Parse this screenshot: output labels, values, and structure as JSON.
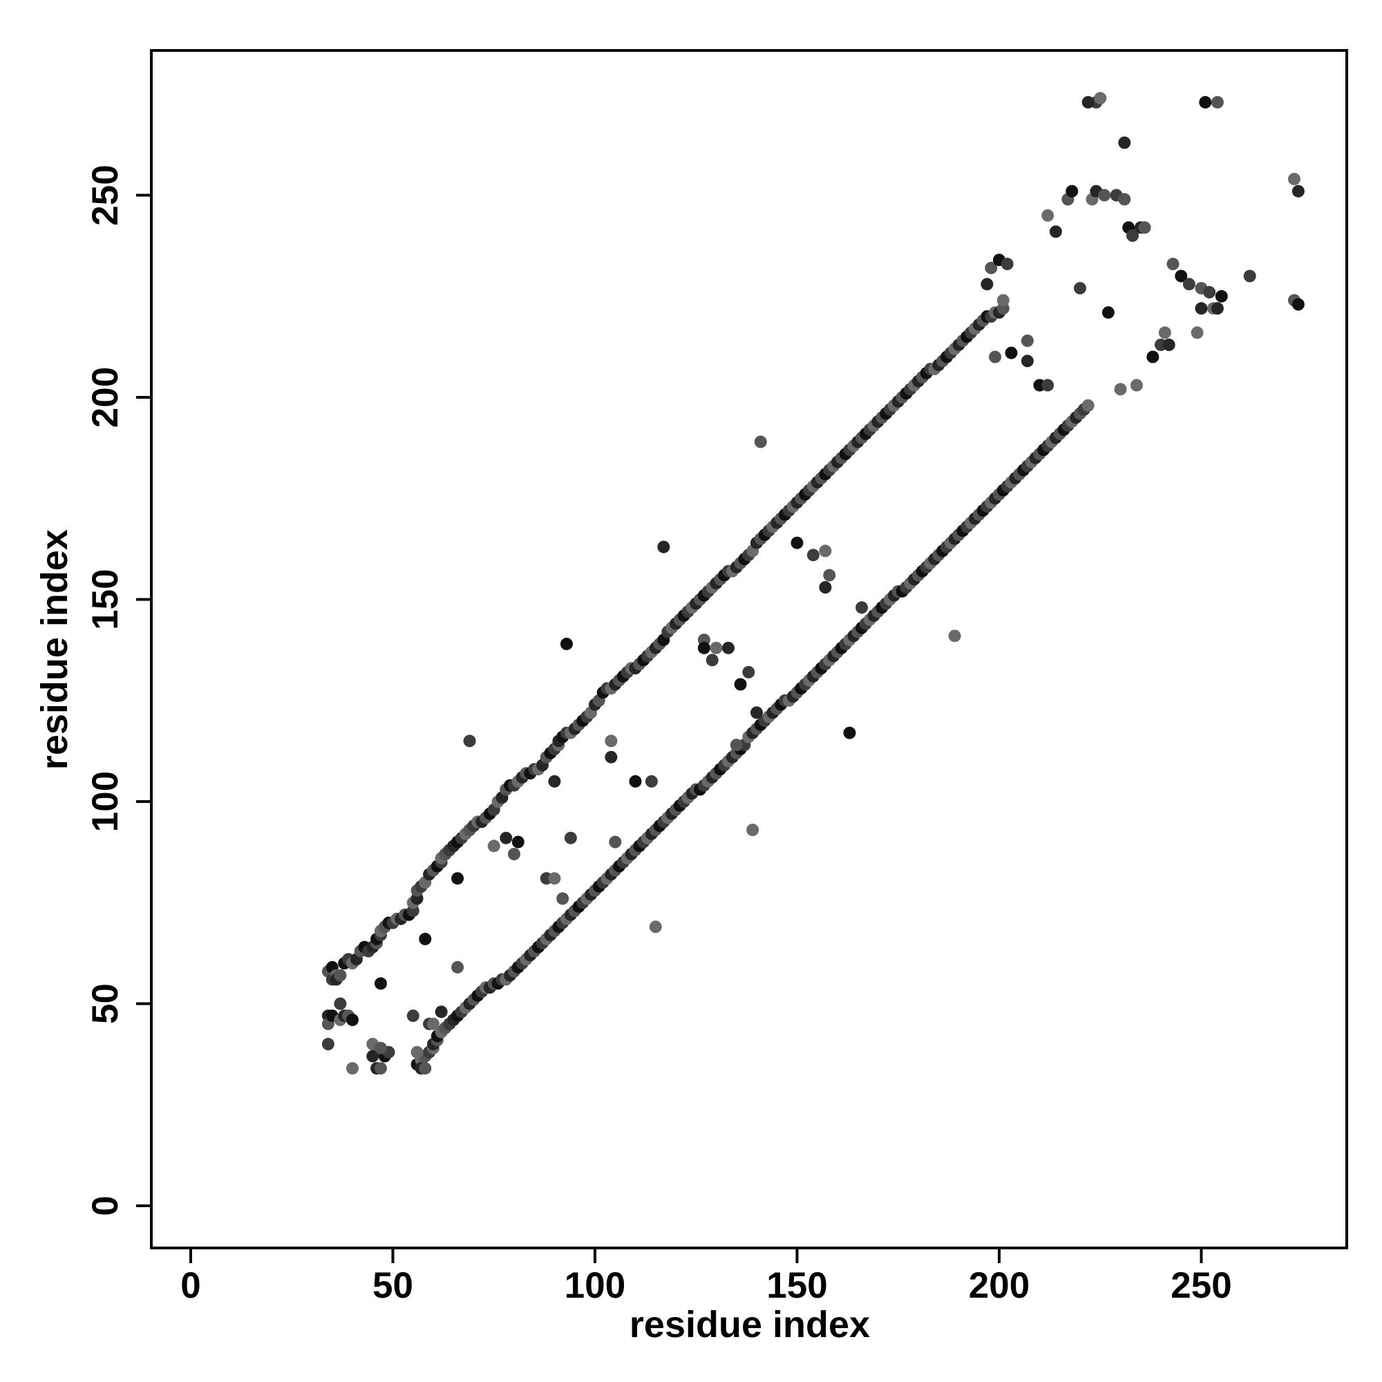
{
  "chart_data": {
    "type": "scatter",
    "title": "",
    "xlabel": "residue index",
    "ylabel": "residue index",
    "xlim": [
      -10,
      286
    ],
    "ylim": [
      -10,
      286
    ],
    "xticks": [
      0,
      50,
      100,
      150,
      200,
      250
    ],
    "yticks": [
      0,
      50,
      100,
      150,
      200,
      250
    ],
    "grid": false,
    "legend": "none",
    "colors": [
      "#111111",
      "#262626",
      "#3c3c3c",
      "#555555",
      "#6a6a6a"
    ],
    "bands": [
      {
        "name": "",
        "points": [
          [
            34,
            58
          ],
          [
            35,
            56
          ],
          [
            36,
            56
          ],
          [
            38,
            60
          ],
          [
            40,
            60
          ],
          [
            42,
            63
          ],
          [
            44,
            63
          ],
          [
            45,
            64
          ],
          [
            46,
            66
          ],
          [
            47,
            68
          ],
          [
            48,
            69
          ],
          [
            50,
            70
          ],
          [
            52,
            71
          ],
          [
            54,
            72
          ],
          [
            55,
            75
          ],
          [
            56,
            78
          ],
          [
            57,
            79
          ],
          [
            59,
            82
          ],
          [
            61,
            84
          ],
          [
            62,
            86
          ],
          [
            63,
            87
          ],
          [
            64,
            88
          ],
          [
            65,
            89
          ],
          [
            66,
            90
          ],
          [
            68,
            92
          ],
          [
            69,
            93
          ],
          [
            70,
            94
          ],
          [
            72,
            95
          ],
          [
            74,
            97
          ],
          [
            76,
            100
          ],
          [
            78,
            103
          ],
          [
            80,
            104
          ],
          [
            82,
            106
          ],
          [
            84,
            107
          ],
          [
            86,
            108
          ],
          [
            88,
            111
          ],
          [
            90,
            113
          ],
          [
            91,
            115
          ],
          [
            92,
            116
          ],
          [
            94,
            117
          ],
          [
            96,
            119
          ],
          [
            98,
            121
          ],
          [
            100,
            124
          ],
          [
            102,
            127
          ],
          [
            104,
            128
          ],
          [
            106,
            130
          ],
          [
            108,
            132
          ],
          [
            110,
            133
          ],
          [
            112,
            135
          ],
          [
            114,
            137
          ],
          [
            116,
            139
          ],
          [
            118,
            142
          ],
          [
            120,
            144
          ],
          [
            122,
            146
          ],
          [
            124,
            148
          ],
          [
            126,
            150
          ],
          [
            128,
            152
          ],
          [
            130,
            154
          ],
          [
            132,
            156
          ],
          [
            134,
            157
          ],
          [
            136,
            159
          ],
          [
            138,
            161
          ],
          [
            140,
            164
          ],
          [
            142,
            166
          ],
          [
            144,
            168
          ],
          [
            146,
            170
          ],
          [
            148,
            172
          ],
          [
            150,
            174
          ],
          [
            152,
            176
          ],
          [
            154,
            178
          ],
          [
            156,
            180
          ],
          [
            158,
            182
          ],
          [
            160,
            184
          ],
          [
            162,
            186
          ],
          [
            164,
            188
          ],
          [
            166,
            190
          ],
          [
            168,
            192
          ],
          [
            170,
            194
          ],
          [
            172,
            196
          ],
          [
            174,
            198
          ],
          [
            176,
            200
          ],
          [
            178,
            202
          ],
          [
            180,
            204
          ],
          [
            182,
            206
          ],
          [
            184,
            207
          ],
          [
            186,
            209
          ],
          [
            188,
            211
          ],
          [
            190,
            213
          ],
          [
            192,
            215
          ],
          [
            194,
            217
          ],
          [
            196,
            219
          ],
          [
            198,
            220
          ],
          [
            200,
            221
          ]
        ]
      },
      {
        "name": "",
        "points": [
          [
            56,
            35
          ],
          [
            57,
            36
          ],
          [
            58,
            37
          ],
          [
            59,
            38
          ],
          [
            60,
            40
          ],
          [
            61,
            42
          ],
          [
            62,
            43
          ],
          [
            63,
            44
          ],
          [
            64,
            45
          ],
          [
            65,
            46
          ],
          [
            66,
            47
          ],
          [
            68,
            49
          ],
          [
            70,
            51
          ],
          [
            72,
            53
          ],
          [
            74,
            54
          ],
          [
            76,
            55
          ],
          [
            78,
            56
          ],
          [
            80,
            58
          ],
          [
            82,
            60
          ],
          [
            84,
            62
          ],
          [
            86,
            64
          ],
          [
            88,
            66
          ],
          [
            90,
            68
          ],
          [
            92,
            70
          ],
          [
            94,
            72
          ],
          [
            96,
            74
          ],
          [
            98,
            76
          ],
          [
            100,
            78
          ],
          [
            102,
            80
          ],
          [
            104,
            82
          ],
          [
            106,
            84
          ],
          [
            108,
            86
          ],
          [
            110,
            88
          ],
          [
            112,
            90
          ],
          [
            114,
            92
          ],
          [
            116,
            94
          ],
          [
            118,
            96
          ],
          [
            120,
            98
          ],
          [
            122,
            100
          ],
          [
            124,
            102
          ],
          [
            126,
            103
          ],
          [
            128,
            105
          ],
          [
            130,
            107
          ],
          [
            132,
            109
          ],
          [
            134,
            111
          ],
          [
            136,
            113
          ],
          [
            138,
            116
          ],
          [
            140,
            118
          ],
          [
            142,
            120
          ],
          [
            144,
            122
          ],
          [
            146,
            124
          ],
          [
            148,
            125
          ],
          [
            150,
            127
          ],
          [
            152,
            129
          ],
          [
            154,
            131
          ],
          [
            156,
            133
          ],
          [
            158,
            135
          ],
          [
            160,
            137
          ],
          [
            162,
            139
          ],
          [
            164,
            141
          ],
          [
            166,
            143
          ],
          [
            168,
            145
          ],
          [
            170,
            147
          ],
          [
            172,
            149
          ],
          [
            174,
            151
          ],
          [
            176,
            152
          ],
          [
            178,
            154
          ],
          [
            180,
            156
          ],
          [
            182,
            158
          ],
          [
            184,
            160
          ],
          [
            186,
            162
          ],
          [
            188,
            164
          ],
          [
            190,
            166
          ],
          [
            192,
            168
          ],
          [
            194,
            170
          ],
          [
            196,
            172
          ],
          [
            198,
            174
          ],
          [
            200,
            176
          ],
          [
            202,
            178
          ],
          [
            204,
            180
          ],
          [
            206,
            182
          ],
          [
            208,
            184
          ],
          [
            210,
            186
          ],
          [
            212,
            188
          ],
          [
            214,
            190
          ],
          [
            216,
            192
          ],
          [
            218,
            194
          ],
          [
            220,
            196
          ],
          [
            221,
            197
          ]
        ]
      }
    ],
    "scatter_points": [
      [
        34,
        47
      ],
      [
        34,
        45
      ],
      [
        35,
        47
      ],
      [
        37,
        50
      ],
      [
        37,
        46
      ],
      [
        38,
        47
      ],
      [
        39,
        47
      ],
      [
        40,
        46
      ],
      [
        34,
        40
      ],
      [
        40,
        34
      ],
      [
        46,
        34
      ],
      [
        47,
        34
      ],
      [
        48,
        37
      ],
      [
        49,
        38
      ],
      [
        45,
        40
      ],
      [
        45,
        37
      ],
      [
        47,
        39
      ],
      [
        47,
        55
      ],
      [
        55,
        47
      ],
      [
        56,
        38
      ],
      [
        57,
        34
      ],
      [
        58,
        34
      ],
      [
        58,
        66
      ],
      [
        59,
        45
      ],
      [
        60,
        45
      ],
      [
        62,
        48
      ],
      [
        66,
        59
      ],
      [
        66,
        81
      ],
      [
        69,
        115
      ],
      [
        75,
        89
      ],
      [
        78,
        91
      ],
      [
        80,
        87
      ],
      [
        81,
        90
      ],
      [
        88,
        81
      ],
      [
        90,
        81
      ],
      [
        90,
        105
      ],
      [
        92,
        76
      ],
      [
        93,
        139
      ],
      [
        94,
        91
      ],
      [
        104,
        115
      ],
      [
        104,
        111
      ],
      [
        105,
        90
      ],
      [
        110,
        105
      ],
      [
        114,
        105
      ],
      [
        115,
        69
      ],
      [
        117,
        163
      ],
      [
        127,
        140
      ],
      [
        127,
        138
      ],
      [
        129,
        135
      ],
      [
        130,
        138
      ],
      [
        133,
        138
      ],
      [
        135,
        114
      ],
      [
        136,
        129
      ],
      [
        138,
        132
      ],
      [
        139,
        93
      ],
      [
        140,
        122
      ],
      [
        141,
        189
      ],
      [
        150,
        164
      ],
      [
        154,
        161
      ],
      [
        157,
        162
      ],
      [
        157,
        153
      ],
      [
        158,
        156
      ],
      [
        163,
        117
      ],
      [
        166,
        148
      ],
      [
        189,
        141
      ],
      [
        207,
        209
      ],
      [
        207,
        214
      ],
      [
        210,
        203
      ],
      [
        212,
        203
      ],
      [
        212,
        245
      ],
      [
        214,
        241
      ],
      [
        217,
        249
      ],
      [
        218,
        251
      ],
      [
        220,
        227
      ],
      [
        223,
        249
      ],
      [
        224,
        251
      ],
      [
        226,
        250
      ],
      [
        227,
        221
      ],
      [
        229,
        250
      ],
      [
        230,
        202
      ],
      [
        231,
        263
      ],
      [
        231,
        249
      ],
      [
        232,
        242
      ],
      [
        233,
        240
      ],
      [
        234,
        203
      ],
      [
        235,
        242
      ],
      [
        236,
        242
      ],
      [
        238,
        210
      ],
      [
        240,
        213
      ],
      [
        241,
        216
      ],
      [
        242,
        213
      ],
      [
        243,
        233
      ],
      [
        245,
        230
      ],
      [
        247,
        228
      ],
      [
        249,
        216
      ],
      [
        250,
        222
      ],
      [
        250,
        227
      ],
      [
        251,
        273
      ],
      [
        252,
        226
      ],
      [
        253,
        222
      ],
      [
        254,
        222
      ],
      [
        254,
        273
      ],
      [
        255,
        225
      ],
      [
        262,
        230
      ],
      [
        273,
        254
      ],
      [
        274,
        251
      ],
      [
        273,
        224
      ],
      [
        274,
        223
      ],
      [
        224,
        273
      ],
      [
        225,
        274
      ],
      [
        222,
        273
      ],
      [
        198,
        232
      ],
      [
        200,
        234
      ],
      [
        202,
        233
      ],
      [
        201,
        224
      ],
      [
        197,
        228
      ],
      [
        199,
        210
      ],
      [
        203,
        211
      ]
    ]
  }
}
